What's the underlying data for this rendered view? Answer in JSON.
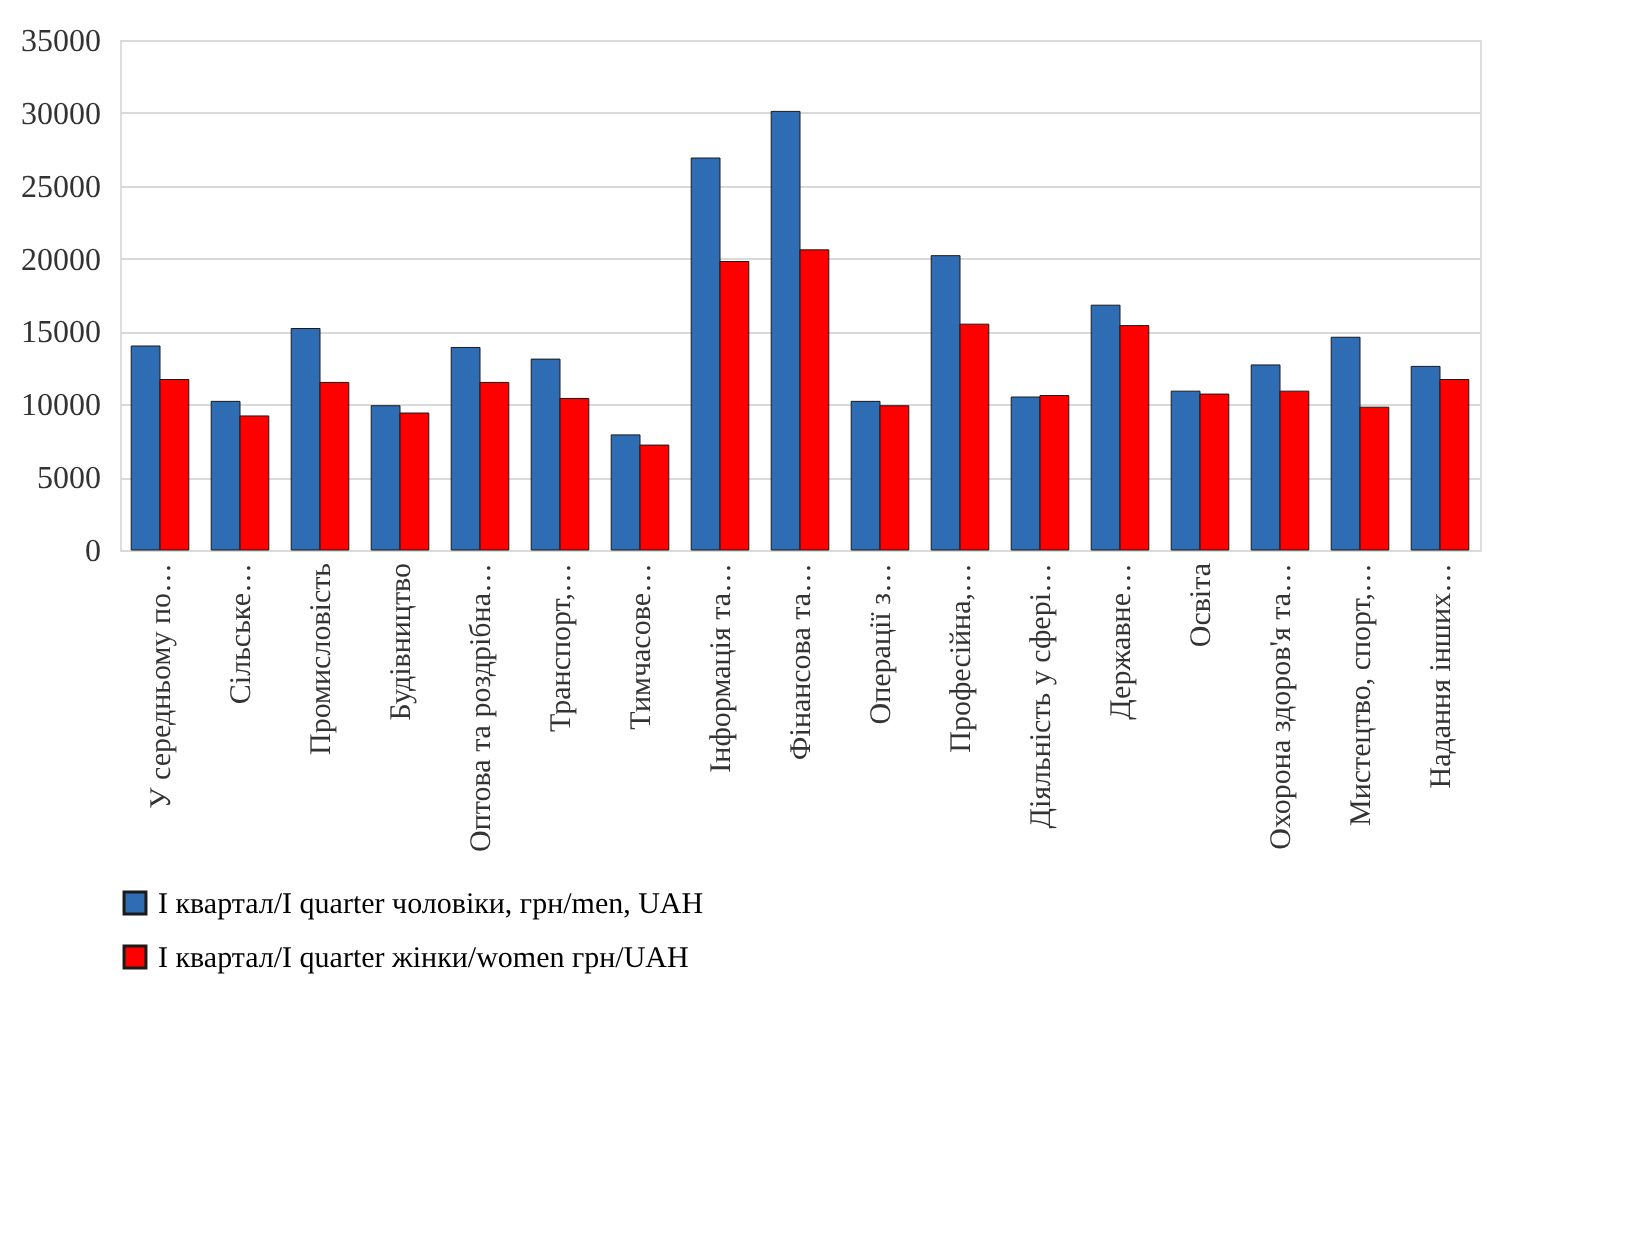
{
  "chart_data": {
    "type": "bar",
    "categories": [
      "У середньому по…",
      "Сільське…",
      "Промисловість",
      "Будівництво",
      "Оптова та роздрібна…",
      "Транспорт,…",
      "Тимчасове…",
      "Інформація та…",
      "Фінансова та…",
      "Операції з…",
      "Професійна,…",
      "Діяльність у сфері…",
      "Державне…",
      "Освіта",
      "Охорона здоров'я та…",
      "Мистецтво, спорт,…",
      "Надання інших…"
    ],
    "series": [
      {
        "name": "І квартал/I quarter чоловіки, грн/men, UAH",
        "color": "#2e6db4",
        "values": [
          14000,
          10200,
          15200,
          9900,
          13900,
          13100,
          7900,
          26900,
          30100,
          10200,
          20200,
          10500,
          16800,
          10900,
          12700,
          14600,
          12600
        ]
      },
      {
        "name": "І квартал/I quarter жінки/women грн/UAH",
        "color": "#ff0000",
        "values": [
          11700,
          9200,
          11500,
          9400,
          11500,
          10400,
          7200,
          19800,
          20600,
          9900,
          15500,
          10600,
          15400,
          10700,
          10900,
          9800,
          11700
        ]
      }
    ],
    "ylim": [
      0,
      35000
    ],
    "yticks": [
      0,
      5000,
      10000,
      15000,
      20000,
      25000,
      30000,
      35000
    ],
    "grid": "y",
    "legend": "bottom"
  }
}
